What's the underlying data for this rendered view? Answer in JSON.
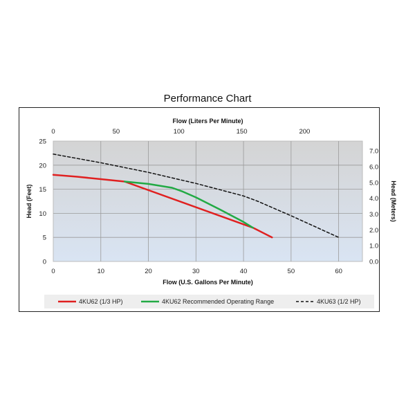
{
  "chart_data": {
    "type": "line",
    "title": "Performance Chart",
    "xlabel": "Flow (U.S. Gallons Per Minute)",
    "x2label": "Flow (Liters Per Minute)",
    "ylabel": "Head (Feet)",
    "y2label": "Head (Meters)",
    "xlim": [
      0,
      65
    ],
    "ylim": [
      0,
      25
    ],
    "x2lim": [
      0,
      246
    ],
    "y2lim": [
      0,
      7.62
    ],
    "x_ticks": [
      0,
      10,
      20,
      30,
      40,
      50,
      60
    ],
    "x_tick_labels": [
      "0",
      "10",
      "20",
      "30",
      "40",
      "50",
      "60"
    ],
    "y_ticks": [
      0,
      5,
      10,
      15,
      20,
      25
    ],
    "y_tick_labels": [
      "0",
      "5",
      "10",
      "15",
      "20",
      "25"
    ],
    "x2_ticks": [
      0,
      50,
      100,
      150,
      200
    ],
    "x2_tick_labels": [
      "0",
      "50",
      "100",
      "150",
      "200"
    ],
    "y2_ticks": [
      0,
      1,
      2,
      3,
      4,
      5,
      6,
      7
    ],
    "y2_tick_labels": [
      "0.0",
      "1.0",
      "2.0",
      "3.0",
      "4.0",
      "5.0",
      "6.0",
      "7.0"
    ],
    "grid": true,
    "legend_position": "bottom",
    "series": [
      {
        "name": "4KU62 (1/3 HP)",
        "color": "#e02020",
        "style": "solid",
        "x": [
          0,
          5,
          10,
          15,
          42,
          46
        ],
        "y": [
          18,
          17.6,
          17.1,
          16.6,
          7,
          5
        ]
      },
      {
        "name": "4KU62 Recommended Operating Range",
        "color": "#22aa44",
        "style": "solid",
        "x": [
          15,
          20,
          25,
          27,
          30,
          35,
          40,
          42
        ],
        "y": [
          16.6,
          16.1,
          15.3,
          14.6,
          13.3,
          10.8,
          8.2,
          7
        ]
      },
      {
        "name": "4KU63 (1/2 HP)",
        "color": "#111111",
        "style": "dashed",
        "x": [
          0,
          10,
          20,
          30,
          40,
          43,
          50,
          60
        ],
        "y": [
          22.3,
          20.5,
          18.5,
          16.2,
          13.6,
          12.5,
          9.5,
          5
        ]
      }
    ]
  }
}
